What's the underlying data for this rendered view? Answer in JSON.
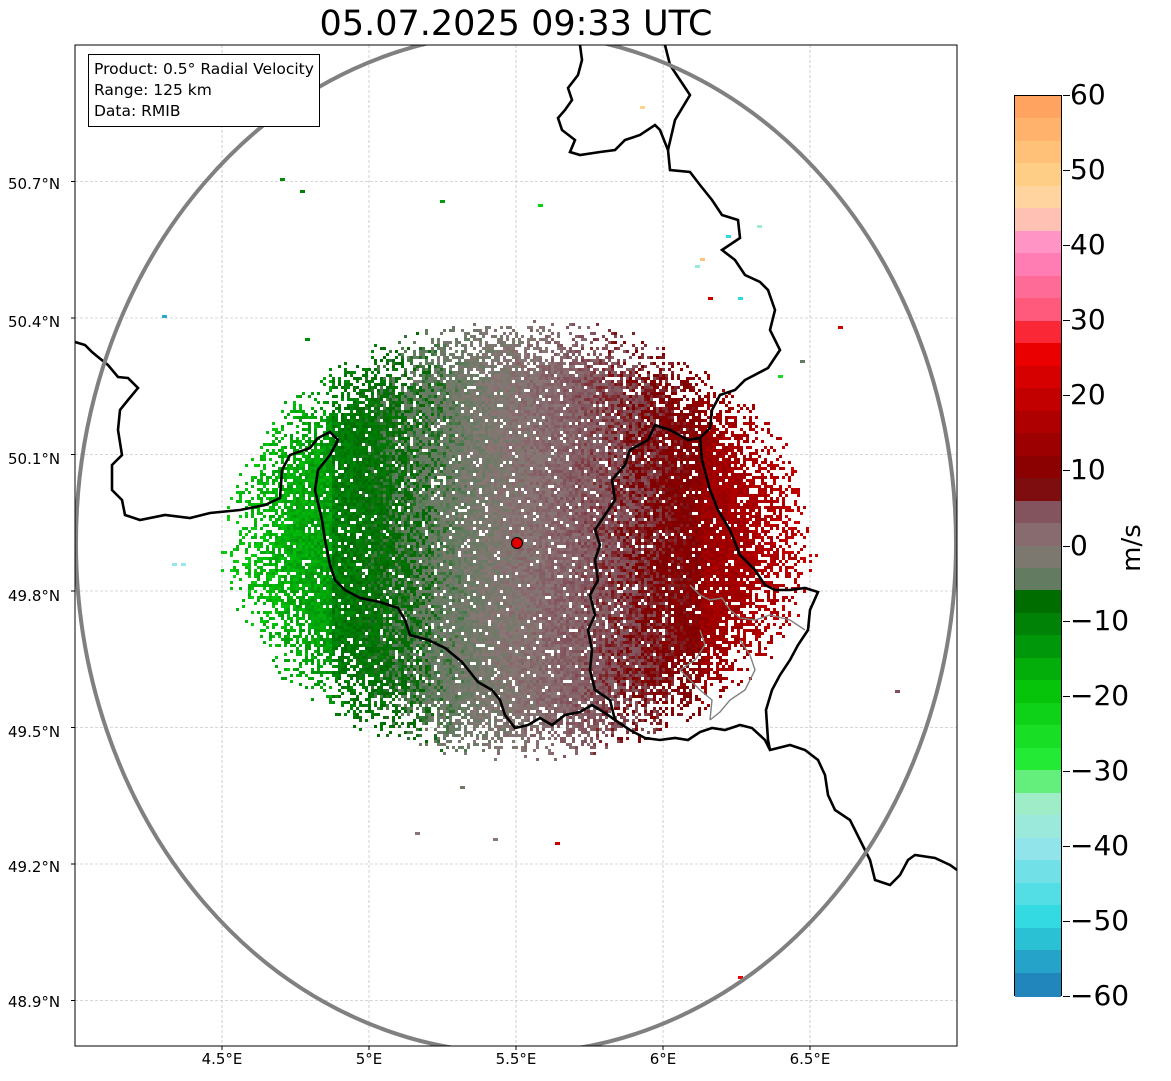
{
  "title": "05.07.2025 09:33 UTC",
  "info": {
    "product": "Product: 0.5° Radial Velocity",
    "range": "Range: 125 km",
    "data": "Data: RMIB"
  },
  "map": {
    "lon_range": [
      4.0,
      7.0
    ],
    "lat_range": [
      48.8,
      51.0
    ],
    "lon_ticks": [
      "4.5°E",
      "5°E",
      "5.5°E",
      "6°E",
      "6.5°E"
    ],
    "lat_ticks": [
      "50.7°N",
      "50.4°N",
      "50.1°N",
      "49.8°N",
      "49.5°N",
      "49.2°N",
      "48.9°N"
    ],
    "radar_site": {
      "lon": 5.505,
      "lat": 49.914
    },
    "range_ring_color": "#808080",
    "grid": true
  },
  "colorbar": {
    "unit": "m/s",
    "min": -60,
    "max": 60,
    "tick_labels": [
      "60",
      "50",
      "40",
      "30",
      "20",
      "10",
      "0",
      "−10",
      "−20",
      "−30",
      "−40",
      "−50",
      "−60"
    ],
    "colors": {
      "strong_approaching": "#1f77b4",
      "approaching_cyan": "#2ed9e0",
      "approaching_green": "#0f8a0f",
      "near_zero_green": "#5e7c5e",
      "near_zero_brown": "#8a6f70",
      "receding_dark_red": "#7a0000",
      "receding_red": "#f00000",
      "receding_pink": "#ff7fb8",
      "strong_receding": "#ff9b50"
    }
  }
}
